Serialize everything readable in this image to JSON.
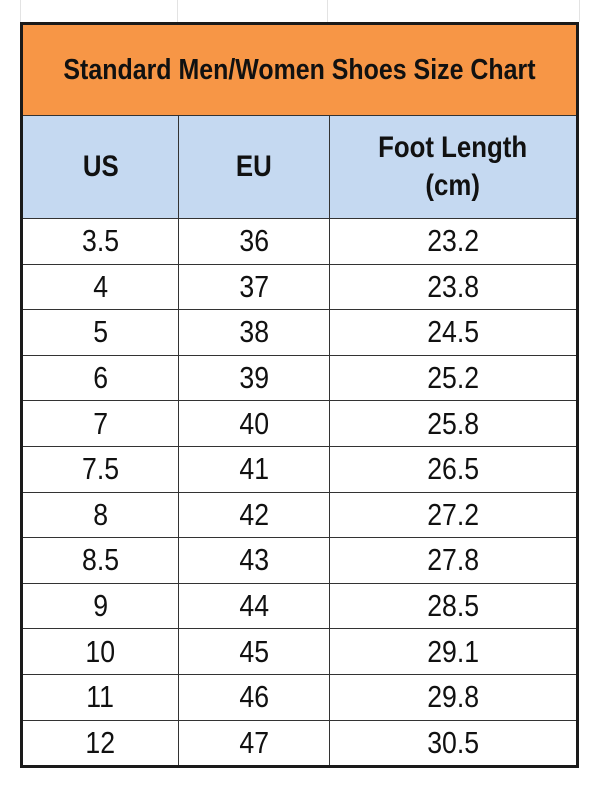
{
  "title": "Standard Men/Women Shoes Size Chart",
  "colors": {
    "title_bg": "#f79646",
    "header_bg": "#c5d9f1",
    "border": "#1a1a1a"
  },
  "columns": [
    {
      "label": "US"
    },
    {
      "label": "EU"
    },
    {
      "label": "Foot Length",
      "unit": "(cm)"
    }
  ],
  "rows": [
    {
      "us": "3.5",
      "eu": "36",
      "cm": "23.2"
    },
    {
      "us": "4",
      "eu": "37",
      "cm": "23.8"
    },
    {
      "us": "5",
      "eu": "38",
      "cm": "24.5"
    },
    {
      "us": "6",
      "eu": "39",
      "cm": "25.2"
    },
    {
      "us": "7",
      "eu": "40",
      "cm": "25.8"
    },
    {
      "us": "7.5",
      "eu": "41",
      "cm": "26.5"
    },
    {
      "us": "8",
      "eu": "42",
      "cm": "27.2"
    },
    {
      "us": "8.5",
      "eu": "43",
      "cm": "27.8"
    },
    {
      "us": "9",
      "eu": "44",
      "cm": "28.5"
    },
    {
      "us": "10",
      "eu": "45",
      "cm": "29.1"
    },
    {
      "us": "11",
      "eu": "46",
      "cm": "29.8"
    },
    {
      "us": "12",
      "eu": "47",
      "cm": "30.5"
    }
  ]
}
